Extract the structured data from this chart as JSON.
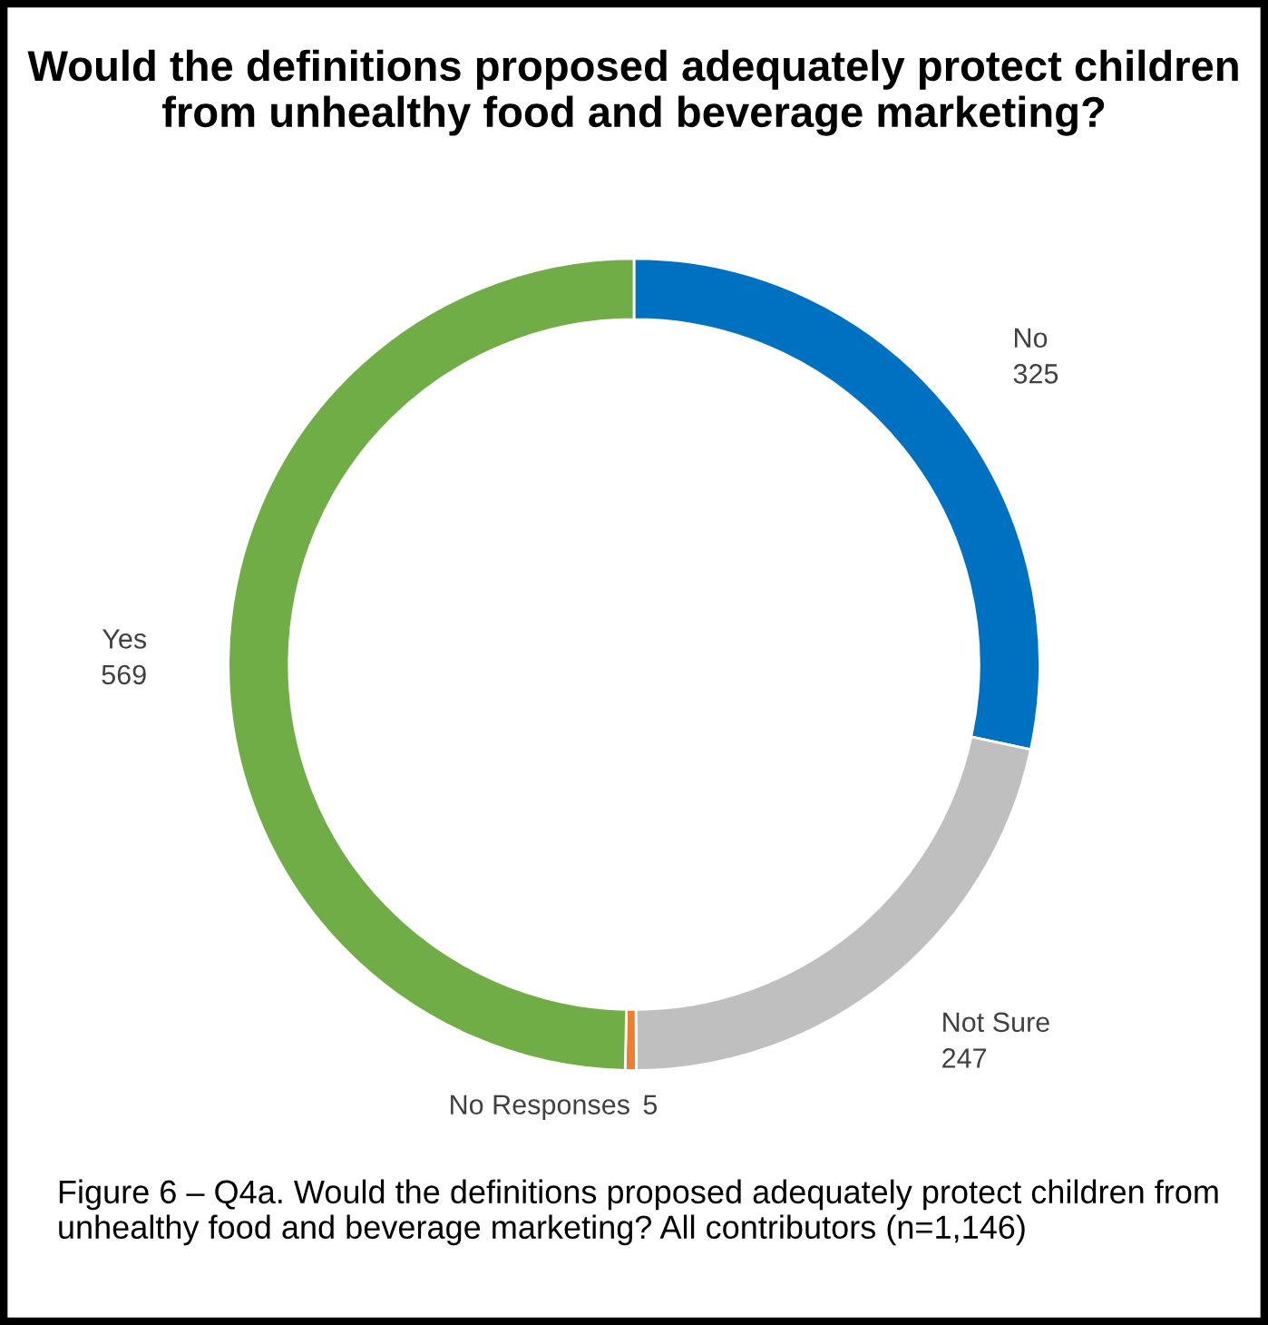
{
  "chart_data": {
    "type": "donut",
    "title": "Would the definitions proposed adequately protect children from unhealthy food and beverage marketing?",
    "categories": [
      "No",
      "Not Sure",
      "No Responses",
      "Yes"
    ],
    "values": [
      325,
      247,
      5,
      569
    ],
    "colors": [
      "#0070c0",
      "#bfbfbf",
      "#ed7d31",
      "#70ad47"
    ],
    "data_labels": true,
    "legend": false,
    "annotations": [
      "Figure 6 – Q4a. Would the definitions proposed adequately protect children from unhealthy food and beverage marketing? All contributors (n=1,146)"
    ]
  }
}
